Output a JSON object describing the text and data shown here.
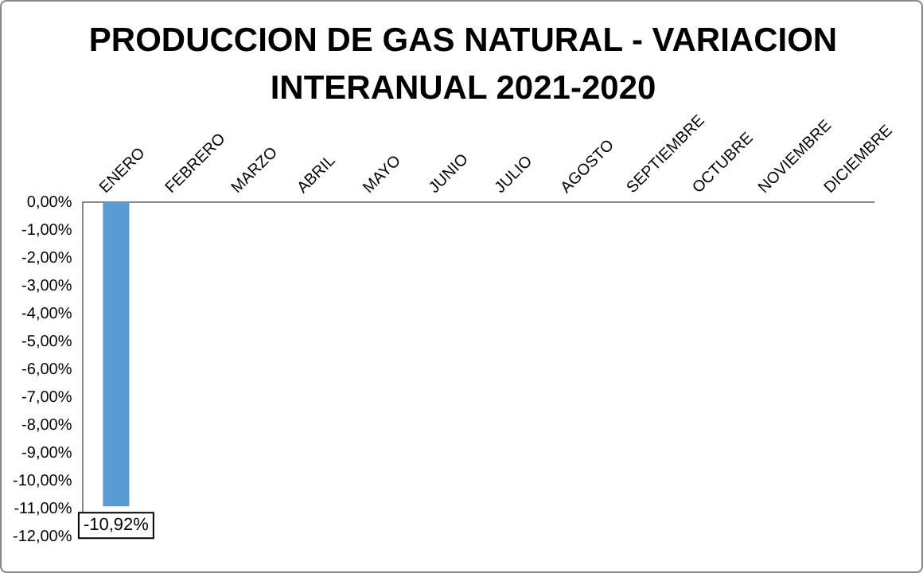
{
  "chart_data": {
    "type": "bar",
    "title": "PRODUCCION DE GAS NATURAL - VARIACION INTERANUAL 2021-2020",
    "categories": [
      "ENERO",
      "FEBRERO",
      "MARZO",
      "ABRIL",
      "MAYO",
      "JUNIO",
      "JULIO",
      "AGOSTO",
      "SEPTIEMBRE",
      "OCTUBRE",
      "NOVIEMBRE",
      "DICIEMBRE"
    ],
    "values": [
      -10.92,
      null,
      null,
      null,
      null,
      null,
      null,
      null,
      null,
      null,
      null,
      null
    ],
    "value_labels": [
      "-10,92%",
      null,
      null,
      null,
      null,
      null,
      null,
      null,
      null,
      null,
      null,
      null
    ],
    "color": "#5b9bd5",
    "ylim": [
      -12,
      0
    ],
    "yticks": [
      {
        "value": 0,
        "label": "0,00%"
      },
      {
        "value": -1,
        "label": "-1,00%"
      },
      {
        "value": -2,
        "label": "-2,00%"
      },
      {
        "value": -3,
        "label": "-3,00%"
      },
      {
        "value": -4,
        "label": "-4,00%"
      },
      {
        "value": -5,
        "label": "-5,00%"
      },
      {
        "value": -6,
        "label": "-6,00%"
      },
      {
        "value": -7,
        "label": "-7,00%"
      },
      {
        "value": -8,
        "label": "-8,00%"
      },
      {
        "value": -9,
        "label": "-9,00%"
      },
      {
        "value": -10,
        "label": "-10,00%"
      },
      {
        "value": -11,
        "label": "-11,00%"
      },
      {
        "value": -12,
        "label": "-12,00%"
      }
    ],
    "grid": false,
    "legend": false
  }
}
